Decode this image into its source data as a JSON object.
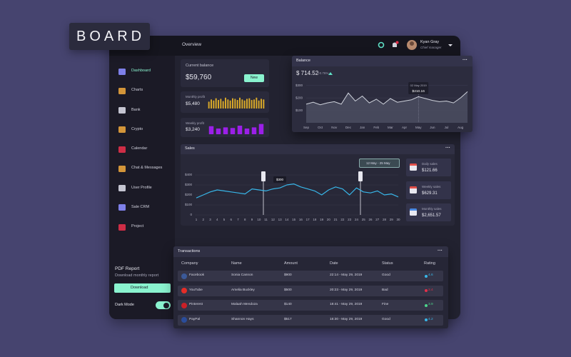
{
  "logo": "BOARD",
  "header": {
    "title": "Overview",
    "user": {
      "name": "Kyan Gray",
      "role": "Chief manager"
    }
  },
  "sidebar": {
    "menu": [
      "Dashboard",
      "Charts",
      "Bank",
      "Crypto",
      "Calendar",
      "Chat & Messages",
      "User Profile",
      "Sale CRM",
      "Project"
    ],
    "pdf_report": {
      "title": "PDF Report",
      "text": "Download monthly report",
      "button": "Download"
    },
    "dark_mode": "Dark Mode"
  },
  "current_balance": {
    "label": "Current balance",
    "value": "$59,760",
    "button": "New"
  },
  "monthly_profit": {
    "label": "Monthly profit",
    "value": "$5,480",
    "color": "#d9a929",
    "bars": [
      60,
      80,
      70,
      90,
      75,
      85,
      65,
      95,
      80,
      70,
      90,
      85,
      75,
      95,
      80,
      70,
      85,
      90,
      75,
      80,
      95,
      70,
      85,
      80
    ]
  },
  "weekly_profit": {
    "label": "Weekly profit",
    "value": "$3,240",
    "color": "#9b1fe8",
    "bars": [
      70,
      50,
      60,
      55,
      75,
      50,
      60,
      90
    ]
  },
  "balance": {
    "title": "Balance",
    "value": "$ 714.52",
    "change": "+0.76%",
    "chart": {
      "type": "area",
      "categories": [
        "Sep",
        null,
        "Oct",
        null,
        "Nov",
        null,
        "Dec",
        null,
        "Jan",
        null,
        "Feb",
        null,
        "Mar",
        null,
        "Apr",
        null,
        "May",
        null,
        "Jun",
        null,
        "Jul",
        null,
        "Aug",
        null
      ],
      "values": [
        150,
        165,
        145,
        160,
        170,
        150,
        240,
        175,
        215,
        160,
        190,
        150,
        195,
        165,
        175,
        185,
        210,
        195,
        180,
        170,
        175,
        160,
        200,
        250
      ],
      "ylim": [
        0,
        350
      ],
      "yticks": [
        {
          "value": 100,
          "label": "$100"
        },
        {
          "value": 200,
          "label": "$200"
        },
        {
          "value": 300,
          "label": "$300"
        }
      ],
      "color": "#cfd3dc",
      "tooltip": {
        "date": "02 May 2019",
        "value": "$210.16"
      }
    }
  },
  "sales": {
    "title": "Sales",
    "range": "12 May - 25 May",
    "chart": {
      "type": "line",
      "x": [
        1,
        2,
        3,
        4,
        5,
        6,
        7,
        8,
        9,
        10,
        11,
        12,
        13,
        14,
        15,
        16,
        17,
        18,
        19,
        20,
        21,
        22,
        23,
        24,
        25,
        26,
        27,
        28,
        29,
        30
      ],
      "values": [
        170,
        200,
        230,
        250,
        240,
        230,
        220,
        210,
        260,
        250,
        240,
        260,
        270,
        300,
        310,
        280,
        260,
        240,
        200,
        250,
        280,
        260,
        200,
        270,
        230,
        220,
        240,
        200,
        210,
        180
      ],
      "xlim": [
        1,
        30
      ],
      "ylim": [
        0,
        430
      ],
      "yticks": [
        0,
        {
          "value": 100,
          "label": "$100"
        },
        {
          "value": 200,
          "label": "$200"
        },
        {
          "value": 300,
          "label": "$300"
        },
        {
          "value": 400,
          "label": "$400"
        }
      ],
      "color": "#38b6e8",
      "tooltip": "$300"
    },
    "summary": [
      {
        "label": "Daily sales",
        "value": "$121.66"
      },
      {
        "label": "Weekly sales",
        "value": "$629.31"
      },
      {
        "label": "Monthly sales",
        "value": "$2,651.57"
      }
    ]
  },
  "transactions": {
    "title": "Transactions",
    "columns": [
      "Company",
      "Name",
      "Amount",
      "Date",
      "Status",
      "Rating"
    ],
    "rows": [
      [
        "Facebook",
        "Sonia Cannon",
        "$900",
        "22:14 - May 29, 2019",
        "Good",
        4.6
      ],
      [
        "YouTube",
        "Amelia Buckley",
        "$500",
        "20:23 - May 29, 2019",
        "Bad",
        2.4
      ],
      [
        "Pinterest",
        "Malaah Mendoza",
        "$140",
        "18:41 - May 29, 2019",
        "Fine",
        3.9
      ],
      [
        "PayPal",
        "Shannon Hays",
        "$517",
        "16:30 - May 29, 2019",
        "Good",
        4.2
      ]
    ]
  }
}
